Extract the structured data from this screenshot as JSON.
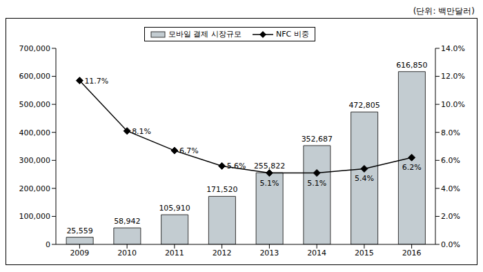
{
  "chart_data": {
    "type": "bar",
    "subtitle": "(단위: 백만달러)",
    "categories": [
      "2009",
      "2010",
      "2011",
      "2012",
      "2013",
      "2014",
      "2015",
      "2016"
    ],
    "series": [
      {
        "name": "모바일 결제 시장규모",
        "type": "bar",
        "color": "#c3ccd1",
        "values": [
          25559,
          58942,
          105910,
          171520,
          255822,
          352687,
          472805,
          616850
        ],
        "value_labels": [
          "25,559",
          "58,942",
          "105,910",
          "171,520",
          "255,822",
          "352,687",
          "472,805",
          "616,850"
        ]
      },
      {
        "name": "NFC 비중",
        "type": "line",
        "axis": "y2",
        "color": "#000000",
        "marker": "diamond",
        "values": [
          11.7,
          8.1,
          6.7,
          5.6,
          5.1,
          5.1,
          5.4,
          6.2
        ],
        "value_labels": [
          "11.7%",
          "8.1%",
          "6.7%",
          "5.6%",
          "5.1%",
          "5.1%",
          "5.4%",
          "6.2%"
        ]
      }
    ],
    "ylim": [
      0,
      700000
    ],
    "yticks": [
      0,
      {
        "value": 100000,
        "label": "100,000"
      },
      {
        "value": 200000,
        "label": "200,000"
      },
      {
        "value": 300000,
        "label": "300,000"
      },
      {
        "value": 400000,
        "label": "400,000"
      },
      {
        "value": 500000,
        "label": "500,000"
      },
      {
        "value": 600000,
        "label": "600,000"
      },
      {
        "value": 700000,
        "label": "700,000"
      }
    ],
    "y2lim": [
      0,
      14
    ],
    "y2ticks": [
      {
        "value": 0,
        "label": "0.0%"
      },
      {
        "value": 2,
        "label": "2.0%"
      },
      {
        "value": 4,
        "label": "4.0%"
      },
      {
        "value": 6,
        "label": "6.0%"
      },
      {
        "value": 8,
        "label": "8.0%"
      },
      {
        "value": 10,
        "label": "10.0%"
      },
      {
        "value": 12,
        "label": "12.0%"
      },
      {
        "value": 14,
        "label": "14.0%"
      }
    ],
    "grid": false,
    "legend": "top",
    "data_labels": true
  }
}
